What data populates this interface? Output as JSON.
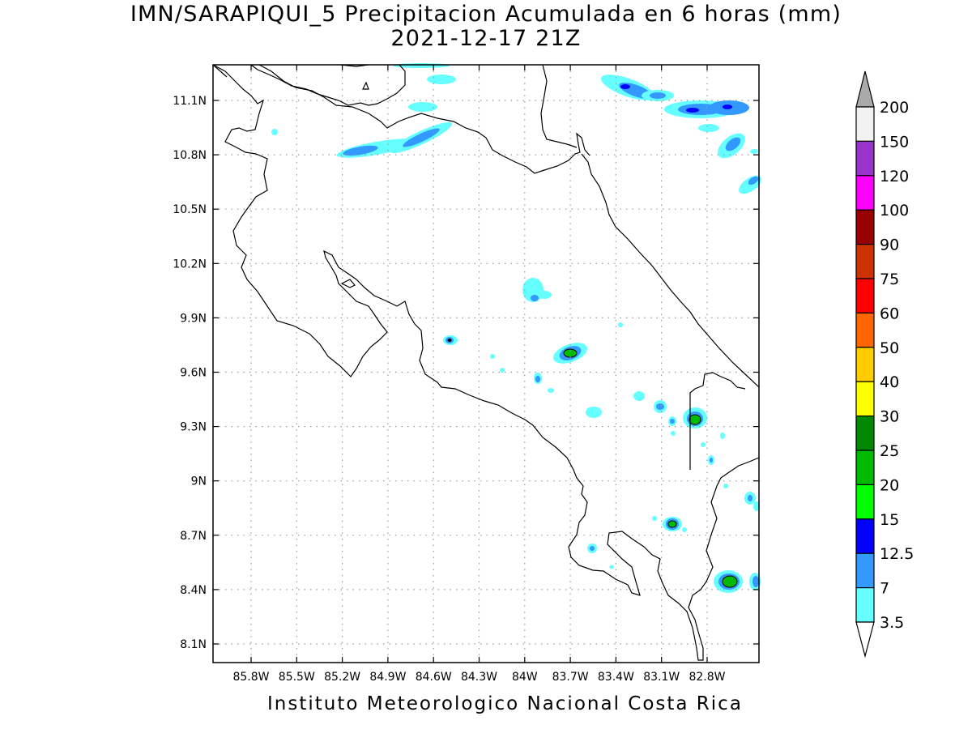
{
  "title": {
    "line1": "IMN/SARAPIQUI_5 Precipitacion Acumulada en 6 horas (mm)",
    "line2": "2021-12-17 21Z"
  },
  "footer": "Instituto Meteorologico Nacional Costa Rica",
  "map": {
    "lon_ticks": [
      "85.8W",
      "85.5W",
      "85.2W",
      "84.9W",
      "84.6W",
      "84.3W",
      "84W",
      "83.7W",
      "83.4W",
      "83.1W",
      "82.8W"
    ],
    "lat_ticks": [
      "11.1N",
      "10.8N",
      "10.5N",
      "10.2N",
      "9.9N",
      "9.6N",
      "9.3N",
      "9N",
      "8.7N",
      "8.4N",
      "8.1N"
    ],
    "lon_range": [
      -86.0,
      -82.5
    ],
    "lat_range": [
      8.0,
      11.3
    ],
    "grid": true
  },
  "colorbar": {
    "labels": [
      "200",
      "150",
      "120",
      "100",
      "90",
      "75",
      "60",
      "50",
      "40",
      "30",
      "25",
      "20",
      "15",
      "12.5",
      "7",
      "3.5"
    ],
    "colors": [
      "#f2f2f2",
      "#9933cc",
      "#ff00ff",
      "#990000",
      "#cc3300",
      "#ff0000",
      "#ff6600",
      "#ffcc00",
      "#ffff00",
      "#008800",
      "#00bb00",
      "#00ff00",
      "#0000ff",
      "#3399ff",
      "#66ffff"
    ],
    "top_arrow_color": "#aaaaaa",
    "bottom_arrow_color": "#ffffff"
  }
}
